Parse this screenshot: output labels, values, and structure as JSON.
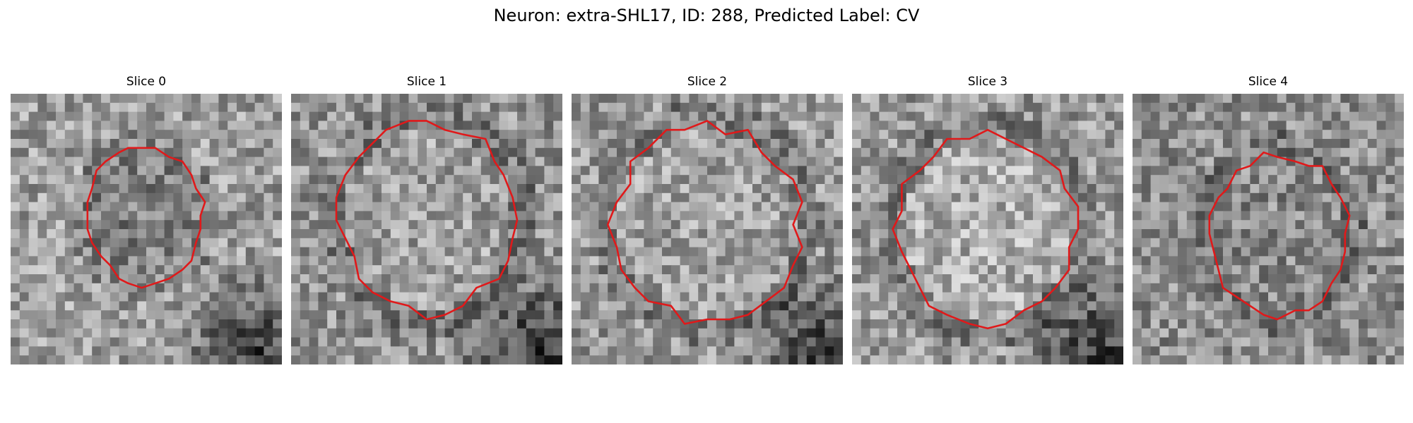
{
  "figure": {
    "title": "Neuron: extra-SHL17, ID: 288, Predicted Label: CV",
    "contour_color": "#e0191a",
    "panels": [
      {
        "title": "Slice 0",
        "seed": 11,
        "base": 0.62,
        "dark_corner": "bottom-right",
        "inner_shade": -0.12,
        "contour_cx": 0.49,
        "contour_cy": 0.45,
        "contour_rx": 0.22,
        "contour_ry": 0.25
      },
      {
        "title": "Slice 1",
        "seed": 23,
        "base": 0.58,
        "dark_corner": "bottom-right",
        "inner_shade": 0.05,
        "contour_cx": 0.5,
        "contour_cy": 0.46,
        "contour_rx": 0.32,
        "contour_ry": 0.35
      },
      {
        "title": "Slice 2",
        "seed": 37,
        "base": 0.6,
        "dark_corner": "bottom-right",
        "inner_shade": 0.03,
        "contour_cx": 0.5,
        "contour_cy": 0.48,
        "contour_rx": 0.34,
        "contour_ry": 0.36
      },
      {
        "title": "Slice 3",
        "seed": 41,
        "base": 0.6,
        "dark_corner": "bottom-right",
        "inner_shade": 0.08,
        "contour_cx": 0.5,
        "contour_cy": 0.5,
        "contour_rx": 0.33,
        "contour_ry": 0.35
      },
      {
        "title": "Slice 4",
        "seed": 53,
        "base": 0.56,
        "dark_corner": "none",
        "inner_shade": -0.02,
        "contour_cx": 0.54,
        "contour_cy": 0.52,
        "contour_rx": 0.25,
        "contour_ry": 0.3
      }
    ]
  }
}
